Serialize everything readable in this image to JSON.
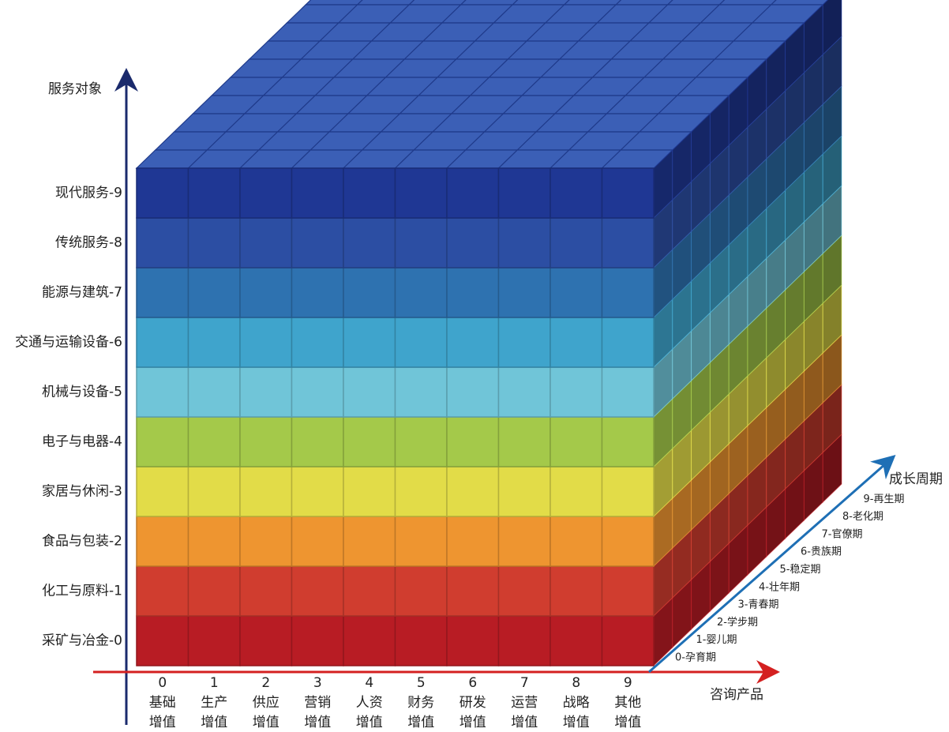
{
  "axes": {
    "y_label": "服务对象",
    "x_label": "咨询产品",
    "z_label": "成长周期"
  },
  "rows": [
    {
      "label": "采矿与冶金-0",
      "color": "#b81c24"
    },
    {
      "label": "化工与原料-1",
      "color": "#d03d2f"
    },
    {
      "label": "食品与包装-2",
      "color": "#ee9530"
    },
    {
      "label": "家居与休闲-3",
      "color": "#e2dc48"
    },
    {
      "label": "电子与电器-4",
      "color": "#a4c94a"
    },
    {
      "label": "机械与设备-5",
      "color": "#70c5d8"
    },
    {
      "label": "交通与运输设备-6",
      "color": "#3fa4cc"
    },
    {
      "label": "能源与建筑-7",
      "color": "#2e72b0"
    },
    {
      "label": "传统服务-8",
      "color": "#2c4ea3"
    },
    {
      "label": "现代服务-9",
      "color": "#1f3794"
    }
  ],
  "columns": [
    {
      "number": 0,
      "line1": "基础",
      "line2": "增值"
    },
    {
      "number": 1,
      "line1": "生产",
      "line2": "增值"
    },
    {
      "number": 2,
      "line1": "供应",
      "line2": "增值"
    },
    {
      "number": 3,
      "line1": "营销",
      "line2": "增值"
    },
    {
      "number": 4,
      "line1": "人资",
      "line2": "增值"
    },
    {
      "number": 5,
      "line1": "财务",
      "line2": "增值"
    },
    {
      "number": 6,
      "line1": "研发",
      "line2": "增值"
    },
    {
      "number": 7,
      "line1": "运营",
      "line2": "增值"
    },
    {
      "number": 8,
      "line1": "战略",
      "line2": "增值"
    },
    {
      "number": 9,
      "line1": "其他",
      "line2": "增值"
    }
  ],
  "depth": [
    "0-孕育期",
    "1-婴儿期",
    "2-学步期",
    "3-青春期",
    "4-壮年期",
    "5-稳定期",
    "6-贵族期",
    "7-官僚期",
    "8-老化期",
    "9-再生期"
  ]
}
